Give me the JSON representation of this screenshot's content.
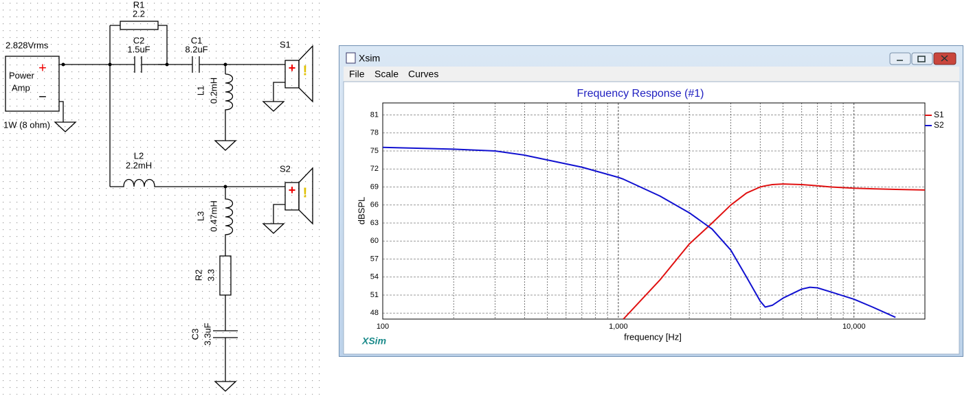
{
  "schematic": {
    "source": {
      "voltage": "2.828Vrms",
      "line1": "Power",
      "line2": "Amp",
      "plus": "+",
      "minus": "−",
      "rating": "1W (8 ohm)"
    },
    "components": [
      {
        "name": "R1",
        "value": "2.2"
      },
      {
        "name": "C2",
        "value": "1.5uF"
      },
      {
        "name": "C1",
        "value": "8.2uF"
      },
      {
        "name": "L1",
        "value": "0.2mH"
      },
      {
        "name": "L2",
        "value": "2.2mH"
      },
      {
        "name": "L3",
        "value": "0.47mH"
      },
      {
        "name": "R2",
        "value": "3.3"
      },
      {
        "name": "C3",
        "value": "3.3uF"
      }
    ],
    "speakers": [
      {
        "name": "S1",
        "plus": "+",
        "mark": "!"
      },
      {
        "name": "S2",
        "plus": "+",
        "mark": "!"
      }
    ]
  },
  "window": {
    "title": "Xsim",
    "menu": [
      "File",
      "Scale",
      "Curves"
    ],
    "brand": "XSim"
  },
  "chart_data": {
    "type": "line",
    "title": "Frequency Response (#1)",
    "x_label": "frequency [Hz]",
    "y_label": "dBSPL",
    "x_scale": "log",
    "xlim": [
      100,
      20000
    ],
    "ylim": [
      47,
      83
    ],
    "xticks": [
      100,
      {
        "value": 1000,
        "label": "1,000"
      },
      {
        "value": 10000,
        "label": "10,000"
      }
    ],
    "xticks_minor": [
      200,
      300,
      400,
      500,
      600,
      700,
      800,
      900,
      2000,
      3000,
      4000,
      5000,
      6000,
      7000,
      8000,
      9000
    ],
    "yticks": [
      48,
      51,
      54,
      57,
      60,
      63,
      66,
      69,
      72,
      75,
      78,
      81
    ],
    "grid": true,
    "legend": "top-right",
    "x": [
      100,
      200,
      300,
      400,
      500,
      700,
      1000,
      1050,
      1500,
      2000,
      2500,
      3000,
      3500,
      4000,
      4200,
      4500,
      5000,
      6000,
      6500,
      7000,
      8000,
      10000,
      12000,
      15000,
      20000
    ],
    "series": [
      {
        "name": "S1",
        "color": "#e01010",
        "values": [
          null,
          null,
          null,
          null,
          null,
          null,
          null,
          47,
          53.5,
          59.5,
          63,
          66,
          68,
          69,
          69.2,
          69.4,
          69.5,
          69.4,
          69.3,
          69.2,
          69,
          68.8,
          68.7,
          68.6,
          68.5
        ]
      },
      {
        "name": "S2",
        "color": "#1010d0",
        "values": [
          75.6,
          75.3,
          75,
          74.3,
          73.5,
          72.3,
          70.6,
          70.3,
          67.5,
          64.7,
          62,
          58.5,
          54,
          50,
          49,
          49.3,
          50.5,
          52,
          52.3,
          52.2,
          51.5,
          50.3,
          49,
          47.3,
          null
        ]
      }
    ]
  }
}
